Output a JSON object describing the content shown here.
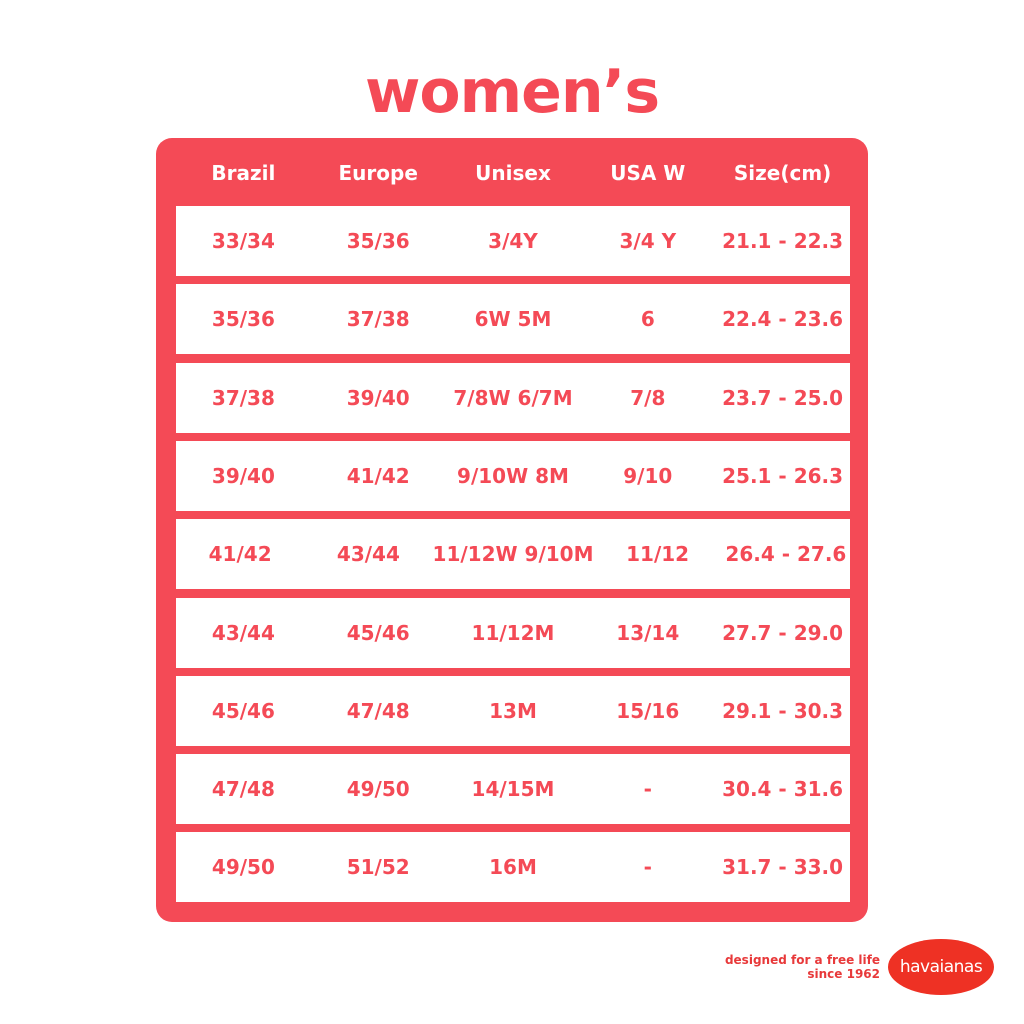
{
  "title": "women’s",
  "colors": {
    "accent": "#f44a56",
    "brand": "#ee3124"
  },
  "table": {
    "headers": [
      "Brazil",
      "Europe",
      "Unisex",
      "USA W",
      "Size(cm)"
    ],
    "rows": [
      [
        "33/34",
        "35/36",
        "3/4Y",
        "3/4 Y",
        "21.1 - 22.3"
      ],
      [
        "35/36",
        "37/38",
        "6W 5M",
        "6",
        "22.4 - 23.6"
      ],
      [
        "37/38",
        "39/40",
        "7/8W 6/7M",
        "7/8",
        "23.7 - 25.0"
      ],
      [
        "39/40",
        "41/42",
        "9/10W 8M",
        "9/10",
        "25.1 - 26.3"
      ],
      [
        "41/42",
        "43/44",
        "11/12W 9/10M",
        "11/12",
        "26.4 - 27.6"
      ],
      [
        "43/44",
        "45/46",
        "11/12M",
        "13/14",
        "27.7 - 29.0"
      ],
      [
        "45/46",
        "47/48",
        "13M",
        "15/16",
        "29.1 - 30.3"
      ],
      [
        "47/48",
        "49/50",
        "14/15M",
        "-",
        "30.4 - 31.6"
      ],
      [
        "49/50",
        "51/52",
        "16M",
        "-",
        "31.7 - 33.0"
      ]
    ]
  },
  "footer": {
    "tagline_1": "designed for a free life",
    "tagline_2": "since 1962",
    "logo": "havaianas"
  }
}
